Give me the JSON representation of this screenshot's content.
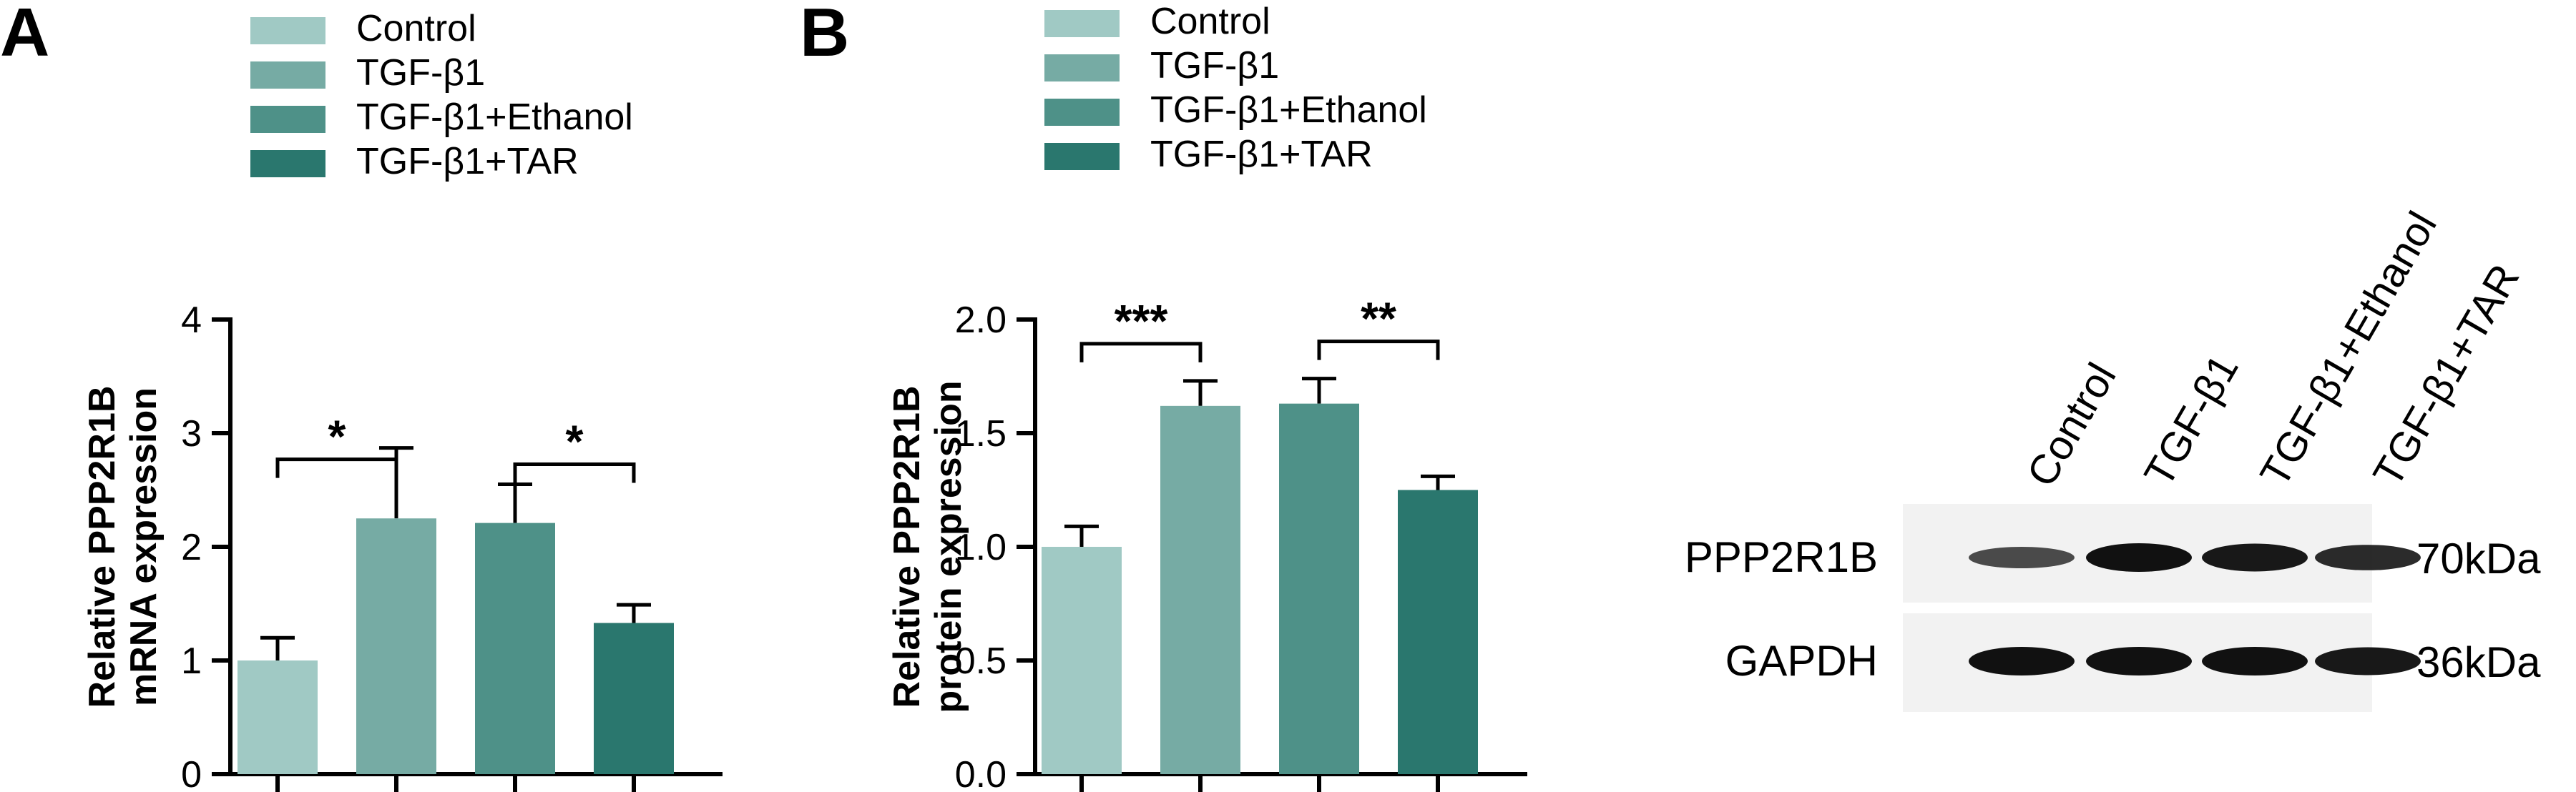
{
  "panels": {
    "A": "A",
    "B": "B"
  },
  "legend": [
    {
      "label": "Control",
      "color": "#a0c9c4"
    },
    {
      "label": "TGF-β1",
      "color": "#76aba4"
    },
    {
      "label": "TGF-β1+Ethanol",
      "color": "#4e9188"
    },
    {
      "label": "TGF-β1+TAR",
      "color": "#2a776e"
    }
  ],
  "chart_data": [
    {
      "type": "bar",
      "panel": "A",
      "categories": [
        "Control",
        "TGF-β1",
        "TGF-β1+Ethanol",
        "TGF-β1+TAR"
      ],
      "values": [
        1.0,
        2.25,
        2.21,
        1.33
      ],
      "errors": [
        0.2,
        0.62,
        0.34,
        0.16
      ],
      "ylabel_line1": "Relative PPP2R1B",
      "ylabel_line2": "mRNA expression",
      "ylim": [
        0,
        4
      ],
      "yticks": [
        "0",
        "1",
        "2",
        "3",
        "4"
      ],
      "ytick_values": [
        0,
        1,
        2,
        3,
        4
      ],
      "significance": [
        {
          "from": 0,
          "to": 1,
          "label": "*"
        },
        {
          "from": 2,
          "to": 3,
          "label": "*"
        }
      ]
    },
    {
      "type": "bar",
      "panel": "B",
      "categories": [
        "Control",
        "TGF-β1",
        "TGF-β1+Ethanol",
        "TGF-β1+TAR"
      ],
      "values": [
        1.0,
        1.62,
        1.63,
        1.25
      ],
      "errors": [
        0.09,
        0.11,
        0.11,
        0.06
      ],
      "ylabel_line1": "Relative PPP2R1B",
      "ylabel_line2": "protein expression",
      "ylim": [
        0,
        2.0
      ],
      "yticks": [
        "0.0",
        "0.5",
        "1.0",
        "1.5",
        "2.0"
      ],
      "ytick_values": [
        0,
        0.5,
        1.0,
        1.5,
        2.0
      ],
      "significance": [
        {
          "from": 0,
          "to": 1,
          "label": "***"
        },
        {
          "from": 2,
          "to": 3,
          "label": "**"
        }
      ]
    }
  ],
  "western_blot": {
    "lanes": [
      "Control",
      "TGF-β1",
      "TGF-β1+Ethanol",
      "TGF-β1+TAR"
    ],
    "rows": [
      {
        "protein": "PPP2R1B",
        "size": "70kDa",
        "intensity": [
          0.55,
          1.0,
          0.95,
          0.8
        ]
      },
      {
        "protein": "GAPDH",
        "size": "36kDa",
        "intensity": [
          1.0,
          1.0,
          1.0,
          0.95
        ]
      }
    ]
  }
}
